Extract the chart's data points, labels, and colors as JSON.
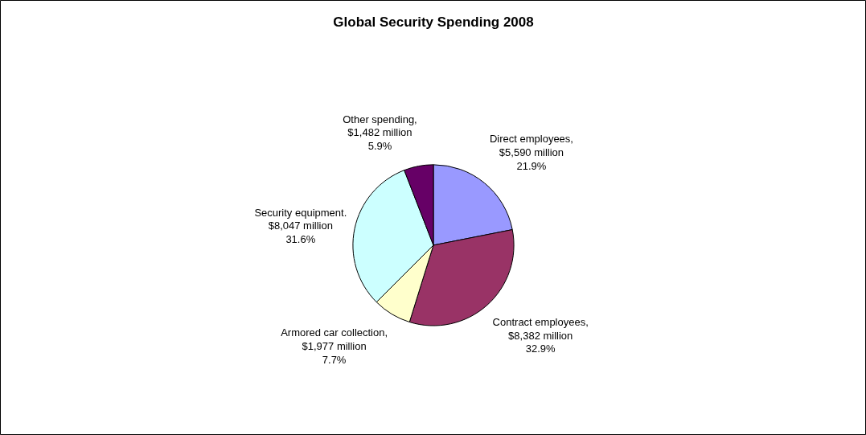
{
  "chart_data": {
    "type": "pie",
    "title": "Global Security Spending 2008",
    "categories": [
      "Direct employees",
      "Contract employees",
      "Armored car collection",
      "Security equipment.",
      "Other spending"
    ],
    "values": [
      21.9,
      32.9,
      7.7,
      31.6,
      5.9
    ],
    "value_labels": [
      ",\n$5,590 million\n21.9%",
      ",\n$8,382 million\n32.9%",
      ",\n$1,977 million\n7.7%",
      "$8,047 million\n31.6%",
      ",\n$1,482 million\n5.9%"
    ],
    "colors": [
      "#9999ff",
      "#993366",
      "#ffffcc",
      "#ccffff",
      "#660066"
    ]
  }
}
